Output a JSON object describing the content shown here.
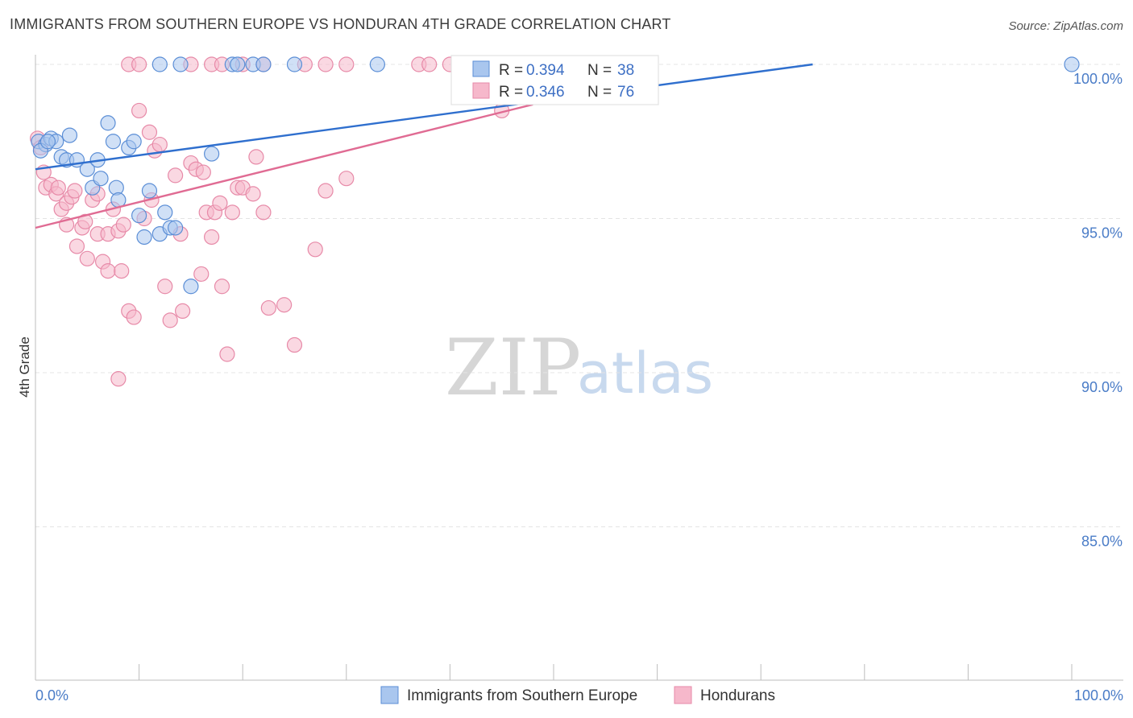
{
  "title": "IMMIGRANTS FROM SOUTHERN EUROPE VS HONDURAN 4TH GRADE CORRELATION CHART",
  "source": "Source: ZipAtlas.com",
  "watermark": {
    "zip": "ZIP",
    "atlas": "atlas"
  },
  "colors": {
    "blue_fill": "#a9c6ee",
    "blue_stroke": "#5b8ed6",
    "blue_line": "#2f6fce",
    "pink_fill": "#f6b8cb",
    "pink_stroke": "#e78aa8",
    "pink_line": "#e06b93",
    "grid": "#e4e4e4",
    "tick_label": "#4a7cc7"
  },
  "chart_data": {
    "type": "scatter",
    "title": "IMMIGRANTS FROM SOUTHERN EUROPE VS HONDURAN 4TH GRADE CORRELATION CHART",
    "xlabel": "",
    "ylabel": "4th Grade",
    "xlim": [
      0,
      100
    ],
    "ylim": [
      80.5,
      100.4
    ],
    "x_tick_labels": [
      "0.0%",
      "100.0%"
    ],
    "y_ticks": [
      85,
      90,
      95,
      100
    ],
    "y_tick_labels": [
      "85.0%",
      "90.0%",
      "95.0%",
      "100.0%"
    ],
    "legend": {
      "rows": [
        {
          "r_label": "R =",
          "r_value": "0.394",
          "n_label": "N =",
          "n_value": "38"
        },
        {
          "r_label": "R =",
          "r_value": "0.346",
          "n_label": "N =",
          "n_value": "76"
        }
      ]
    },
    "series": [
      {
        "name": "Immigrants from Southern Europe",
        "color": "#a9c6ee",
        "trend": {
          "x0": 0,
          "y0": 96.6,
          "x1": 75,
          "y1": 100
        },
        "points": [
          [
            0.3,
            97.5
          ],
          [
            1.0,
            97.4
          ],
          [
            1.5,
            97.6
          ],
          [
            2,
            97.5
          ],
          [
            2.5,
            97.0
          ],
          [
            3,
            96.9
          ],
          [
            3.3,
            97.7
          ],
          [
            4,
            96.9
          ],
          [
            5,
            96.6
          ],
          [
            5.5,
            96.0
          ],
          [
            6,
            96.9
          ],
          [
            6.3,
            96.3
          ],
          [
            7,
            98.1
          ],
          [
            7.5,
            97.5
          ],
          [
            7.8,
            96.0
          ],
          [
            8,
            95.6
          ],
          [
            9,
            97.3
          ],
          [
            9.5,
            97.5
          ],
          [
            10,
            95.1
          ],
          [
            10.5,
            94.4
          ],
          [
            11,
            95.9
          ],
          [
            12,
            94.5
          ],
          [
            12.5,
            95.2
          ],
          [
            13,
            94.7
          ],
          [
            13.5,
            94.7
          ],
          [
            15,
            92.8
          ],
          [
            17,
            97.1
          ],
          [
            12,
            100
          ],
          [
            14,
            100
          ],
          [
            19,
            100
          ],
          [
            19.5,
            100
          ],
          [
            21,
            100
          ],
          [
            22,
            100
          ],
          [
            25,
            100
          ],
          [
            33,
            100
          ],
          [
            100,
            100
          ],
          [
            0.5,
            97.2
          ],
          [
            1.2,
            97.5
          ]
        ]
      },
      {
        "name": "Hondurans",
        "color": "#f6b8cb",
        "trend": {
          "x0": 0,
          "y0": 94.7,
          "x1": 48,
          "y1": 98.7
        },
        "points": [
          [
            0.2,
            97.6
          ],
          [
            0.5,
            97.3
          ],
          [
            0.8,
            96.5
          ],
          [
            1,
            96.0
          ],
          [
            1.5,
            96.1
          ],
          [
            2,
            95.8
          ],
          [
            2.5,
            95.3
          ],
          [
            3,
            95.5
          ],
          [
            3,
            94.8
          ],
          [
            3.5,
            95.7
          ],
          [
            3.8,
            95.9
          ],
          [
            4,
            94.1
          ],
          [
            4.5,
            94.7
          ],
          [
            4.8,
            94.9
          ],
          [
            5,
            93.7
          ],
          [
            5.5,
            95.6
          ],
          [
            6,
            95.8
          ],
          [
            6,
            94.5
          ],
          [
            6.5,
            93.6
          ],
          [
            7,
            93.3
          ],
          [
            7,
            94.5
          ],
          [
            7.5,
            95.3
          ],
          [
            8,
            94.6
          ],
          [
            8.3,
            93.3
          ],
          [
            8.5,
            94.8
          ],
          [
            9,
            92.0
          ],
          [
            9.5,
            91.8
          ],
          [
            10,
            98.5
          ],
          [
            10.5,
            95.0
          ],
          [
            11,
            97.8
          ],
          [
            11.2,
            95.6
          ],
          [
            11.5,
            97.2
          ],
          [
            12,
            97.4
          ],
          [
            12.5,
            92.8
          ],
          [
            13,
            91.7
          ],
          [
            13.5,
            96.4
          ],
          [
            14,
            94.5
          ],
          [
            14.2,
            92.0
          ],
          [
            15,
            96.8
          ],
          [
            15.5,
            96.6
          ],
          [
            16,
            93.2
          ],
          [
            16.2,
            96.5
          ],
          [
            16.5,
            95.2
          ],
          [
            17,
            94.4
          ],
          [
            17.3,
            95.2
          ],
          [
            17.8,
            95.5
          ],
          [
            18,
            92.8
          ],
          [
            18.5,
            90.6
          ],
          [
            19,
            95.2
          ],
          [
            19.5,
            96.0
          ],
          [
            20,
            96.0
          ],
          [
            21,
            95.8
          ],
          [
            21.3,
            97.0
          ],
          [
            22,
            95.2
          ],
          [
            22.5,
            92.1
          ],
          [
            24,
            92.2
          ],
          [
            25,
            90.9
          ],
          [
            27,
            94.0
          ],
          [
            28,
            95.9
          ],
          [
            30,
            96.3
          ],
          [
            8,
            89.8
          ],
          [
            9,
            100
          ],
          [
            10,
            100
          ],
          [
            15,
            100
          ],
          [
            17,
            100
          ],
          [
            18,
            100
          ],
          [
            20,
            100
          ],
          [
            22,
            100
          ],
          [
            26,
            100
          ],
          [
            28,
            100
          ],
          [
            30,
            100
          ],
          [
            37,
            100
          ],
          [
            38,
            100
          ],
          [
            40,
            100
          ],
          [
            45,
            98.5
          ],
          [
            2.2,
            96.0
          ]
        ]
      }
    ]
  },
  "bottom_legend": [
    {
      "label": "Immigrants from Southern Europe"
    },
    {
      "label": "Hondurans"
    }
  ]
}
